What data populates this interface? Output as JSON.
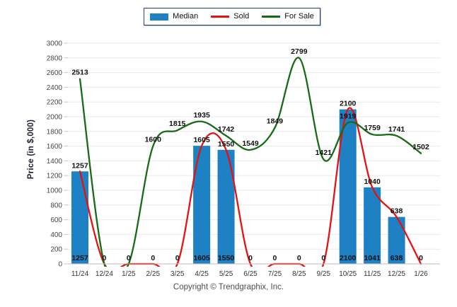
{
  "legend": {
    "items": [
      {
        "label": "Median",
        "swatch": "bar-swatch-icon"
      },
      {
        "label": "Sold",
        "swatch": "line-swatch-icon"
      },
      {
        "label": "For Sale",
        "swatch": "line-swatch-icon"
      }
    ]
  },
  "chart_data": {
    "type": "combo (bar + line)",
    "title": "",
    "xlabel": "",
    "ylabel": "Price (in $,000)",
    "ylim": [
      0,
      3000
    ],
    "ytick_step": 200,
    "grid": true,
    "legend_position": "top-center",
    "categories": [
      "11/24",
      "12/24",
      "1/25",
      "2/25",
      "3/25",
      "4/25",
      "5/25",
      "6/25",
      "7/25",
      "8/25",
      "9/25",
      "10/25",
      "11/25",
      "12/25",
      "1/26"
    ],
    "series": [
      {
        "name": "Median",
        "type": "bar",
        "color": "#1E81C4",
        "values": [
          1257,
          0,
          0,
          0,
          0,
          1605,
          1550,
          0,
          0,
          0,
          0,
          2100,
          1040,
          638,
          0
        ],
        "label_placement": "above-bar"
      },
      {
        "name": "Sold",
        "type": "line",
        "color": "#E51212",
        "values": [
          1257,
          0,
          0,
          0,
          0,
          1605,
          1550,
          0,
          0,
          0,
          0,
          2100,
          1041,
          638,
          0
        ],
        "label_placement": "baseline-row"
      },
      {
        "name": "For Sale",
        "type": "line",
        "color": "#176B17",
        "values": [
          2513,
          0,
          0,
          1600,
          1815,
          1935,
          1742,
          1549,
          1849,
          2799,
          1421,
          1919,
          1759,
          1741,
          1502
        ],
        "label_placement": "above-point"
      }
    ]
  },
  "footer": {
    "copyright": "Copyright © Trendgraphix, Inc."
  }
}
